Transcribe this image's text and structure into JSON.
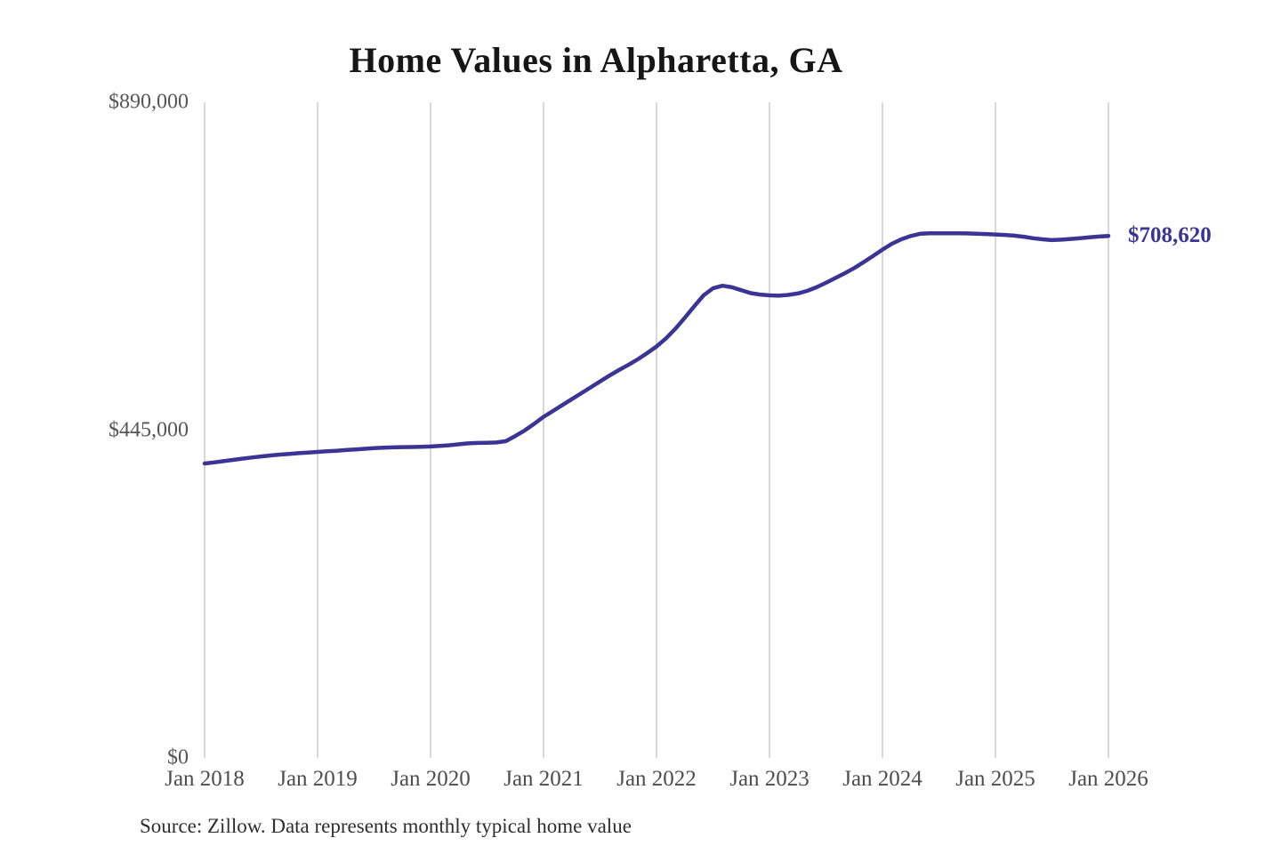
{
  "title": "Home Values in Alpharetta, GA",
  "source_note": "Source: Zillow. Data represents monthly typical home value",
  "colors": {
    "line": "#3c3495",
    "end_label": "#3c3495",
    "grid": "#cccccc",
    "title_text": "#161616",
    "axis_text": "#555555",
    "source_text": "#2e2e2e",
    "background": "#ffffff"
  },
  "chart_data": {
    "type": "line",
    "title": "Home Values in Alpharetta, GA",
    "series_name": "Monthly typical home value",
    "frequency": "monthly",
    "start_label": "Jan 2018",
    "end_label_text": "$708,620",
    "end_value": 708620,
    "xlabel": "",
    "ylabel": "",
    "ylim": [
      0,
      890000
    ],
    "grid": "vertical-only",
    "legend": "none",
    "x_tick_labels": [
      "Jan 2018",
      "Jan 2019",
      "Jan 2020",
      "Jan 2021",
      "Jan 2022",
      "Jan 2023",
      "Jan 2024",
      "Jan 2025",
      "Jan 2026"
    ],
    "y_ticks": [
      {
        "label": "$0",
        "value": 0
      },
      {
        "label": "$445,000",
        "value": 445000
      },
      {
        "label": "$890,000",
        "value": 890000
      }
    ],
    "values": [
      399700,
      401200,
      402800,
      404500,
      406200,
      407800,
      409300,
      410600,
      411800,
      412800,
      413700,
      414600,
      415400,
      416200,
      417000,
      417900,
      418800,
      419700,
      420500,
      421100,
      421600,
      421900,
      422100,
      422400,
      422800,
      423500,
      424500,
      425800,
      427000,
      427600,
      427800,
      428200,
      430000,
      437000,
      444500,
      453500,
      463000,
      471000,
      479000,
      487000,
      495000,
      503000,
      511000,
      519000,
      526500,
      533500,
      541000,
      549500,
      558500,
      569500,
      582500,
      597500,
      613000,
      628000,
      637500,
      641000,
      639000,
      635000,
      631000,
      629000,
      628000,
      627500,
      628500,
      630500,
      634000,
      639000,
      645000,
      651500,
      658000,
      665000,
      673000,
      681500,
      690000,
      698000,
      704000,
      708500,
      711500,
      712200,
      712300,
      712300,
      712200,
      712000,
      711600,
      711100,
      710600,
      710000,
      709000,
      707500,
      705500,
      704000,
      703000,
      703500,
      704500,
      705600,
      706800,
      707800,
      708620
    ]
  }
}
